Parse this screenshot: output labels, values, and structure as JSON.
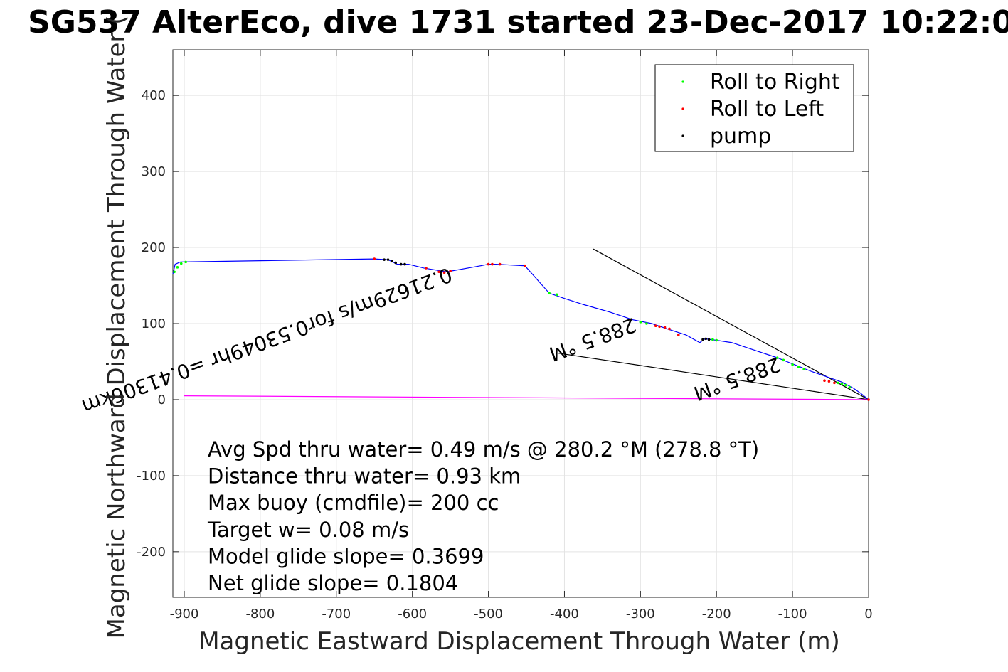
{
  "chart_data": {
    "type": "line",
    "title": "SG537 AlterEco, dive 1731 started 23-Dec-2017 10:22:0",
    "xlabel": "Magnetic Eastward Displacement Through Water (m)",
    "ylabel": "Magnetic Northward Displacement Through Water (",
    "xlim": [
      -915,
      0
    ],
    "ylim": [
      -260,
      460
    ],
    "xticks": [
      -900,
      -800,
      -700,
      -600,
      -500,
      -400,
      -300,
      -200,
      -100,
      0
    ],
    "yticks": [
      -200,
      -100,
      0,
      100,
      200,
      300,
      400
    ],
    "grid": true,
    "legend_position": "top-right",
    "legend": [
      {
        "label": "Roll to Right",
        "color": "#00ff00"
      },
      {
        "label": "Roll to Left",
        "color": "#ff0000"
      },
      {
        "label": "pump",
        "color": "#000000"
      }
    ],
    "track": {
      "color": "#0000ff",
      "x": [
        0,
        -10,
        -20,
        -35,
        -55,
        -75,
        -95,
        -120,
        -150,
        -180,
        -200,
        -215,
        -222,
        -240,
        -265,
        -285,
        -310,
        -340,
        -375,
        -400,
        -420,
        -452,
        -490,
        -500,
        -510,
        -555,
        -585,
        -605,
        -620,
        -632,
        -650,
        -905,
        -912,
        -915
      ],
      "y": [
        0,
        8,
        15,
        23,
        30,
        37,
        45,
        55,
        65,
        75,
        78,
        80,
        75,
        85,
        93,
        100,
        105,
        115,
        125,
        133,
        140,
        176,
        178,
        178,
        176,
        168,
        173,
        178,
        178,
        184,
        185,
        181,
        178,
        165
      ]
    },
    "series": [
      {
        "name": "Roll to Right",
        "color": "#00ff00",
        "x": [
          -913,
          -909,
          -904,
          -898,
          -420,
          -410,
          -300,
          -292,
          -205,
          -200,
          -120,
          -112,
          -100,
          -92,
          -85,
          -40,
          -35,
          -30,
          -25
        ],
        "y": [
          168,
          174,
          179,
          181,
          140,
          138,
          102,
          100,
          79,
          78,
          55,
          52,
          46,
          43,
          40,
          22,
          21,
          19,
          16
        ]
      },
      {
        "name": "Roll to Left",
        "color": "#ff0000",
        "x": [
          -650,
          -582,
          -565,
          -558,
          -550,
          -500,
          -495,
          -485,
          -452,
          -280,
          -275,
          -268,
          -262,
          -250,
          -58,
          -52,
          -45,
          0
        ],
        "y": [
          185,
          173,
          168,
          167,
          169,
          178,
          178,
          178,
          176,
          97,
          96,
          95,
          93,
          85,
          25,
          24,
          22,
          0
        ]
      },
      {
        "name": "pump",
        "color": "#000000",
        "x": [
          -637,
          -632,
          -627,
          -622,
          -615,
          -610,
          -218,
          -214,
          -210
        ],
        "y": [
          184,
          184,
          182,
          180,
          178,
          178,
          79,
          80,
          79
        ]
      }
    ],
    "lines": [
      {
        "color": "#000000",
        "x": [
          -362,
          0
        ],
        "y": [
          198,
          0
        ]
      },
      {
        "color": "#000000",
        "x": [
          -408,
          0
        ],
        "y": [
          61,
          0
        ]
      },
      {
        "color": "#ff00ff",
        "x": [
          -900,
          0
        ],
        "y": [
          5,
          0
        ]
      }
    ],
    "rotated_labels": [
      {
        "text": "0.21629m/s for0.53049hr =0.41306km",
        "x": -552,
        "y": 174,
        "angle_deg": 160
      },
      {
        "text": "288.5 °M",
        "x": -310,
        "y": 108,
        "angle_deg": 160
      },
      {
        "text": "288.5 °M",
        "x": -120,
        "y": 56,
        "angle_deg": 160
      }
    ],
    "annotations": [
      "Avg Spd thru water=  0.49 m/s @ 280.2 °M (278.8 °T)",
      "Distance thru water=  0.93 km",
      "Max buoy (cmdfile)= 200 cc",
      "Target w= 0.08 m/s",
      "Model glide slope= 0.3699",
      "Net glide slope= 0.1804"
    ]
  }
}
